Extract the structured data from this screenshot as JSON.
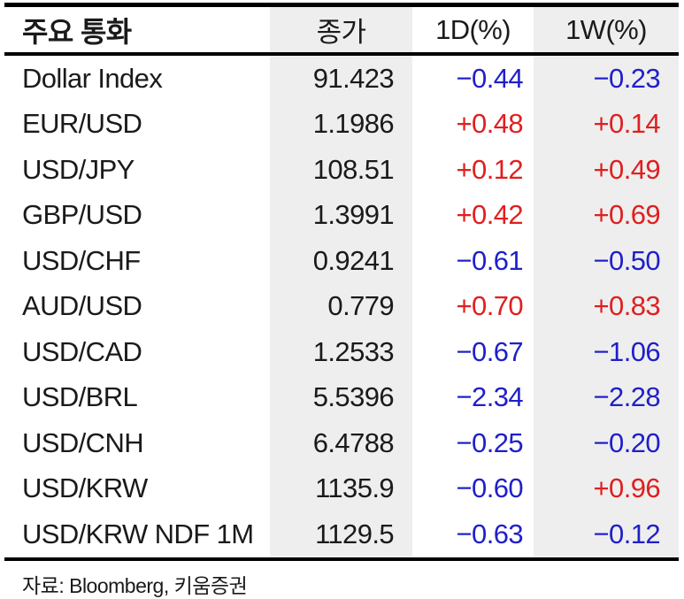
{
  "table": {
    "header": {
      "col1": "주요 통화",
      "col2": "종가",
      "col3": "1D(%)",
      "col4": "1W(%)"
    },
    "rows": [
      {
        "name": "Dollar Index",
        "close": "91.423",
        "d1": "−0.44",
        "w1": "−0.23"
      },
      {
        "name": "EUR/USD",
        "close": "1.1986",
        "d1": "+0.48",
        "w1": "+0.14"
      },
      {
        "name": "USD/JPY",
        "close": "108.51",
        "d1": "+0.12",
        "w1": "+0.49"
      },
      {
        "name": "GBP/USD",
        "close": "1.3991",
        "d1": "+0.42",
        "w1": "+0.69"
      },
      {
        "name": "USD/CHF",
        "close": "0.9241",
        "d1": "−0.61",
        "w1": "−0.50"
      },
      {
        "name": "AUD/USD",
        "close": "0.779",
        "d1": "+0.70",
        "w1": "+0.83"
      },
      {
        "name": "USD/CAD",
        "close": "1.2533",
        "d1": "−0.67",
        "w1": "−1.06"
      },
      {
        "name": "USD/BRL",
        "close": "5.5396",
        "d1": "−2.34",
        "w1": "−2.28"
      },
      {
        "name": "USD/CNH",
        "close": "6.4788",
        "d1": "−0.25",
        "w1": "−0.20"
      },
      {
        "name": "USD/KRW",
        "close": "1135.9",
        "d1": "−0.60",
        "w1": "+0.96"
      },
      {
        "name": "USD/KRW NDF 1M",
        "close": "1129.5",
        "d1": "−0.63",
        "w1": "−0.12"
      }
    ],
    "footer": "자료: Bloomberg,  키움증권"
  },
  "colors": {
    "positive": "#e01f1f",
    "negative": "#1f1fca",
    "column_shade": "#eeeeee",
    "rule": "#000000",
    "text": "#1a1a1a"
  }
}
